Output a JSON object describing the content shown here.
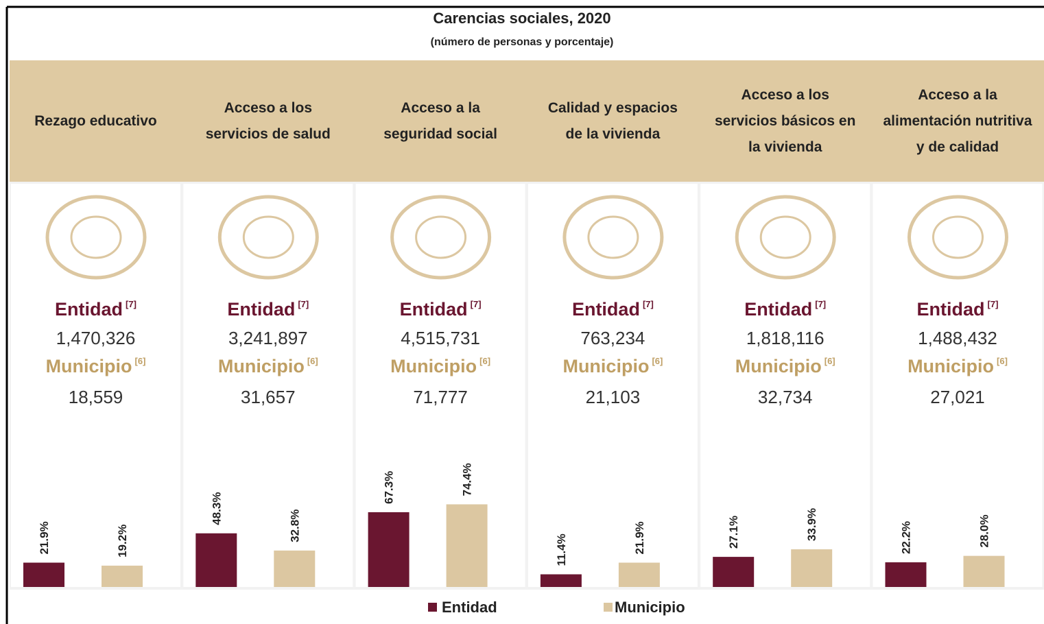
{
  "chart_data": {
    "type": "bar",
    "title": "Carencias sociales, 2020",
    "subtitle": "(número de personas y porcentaje)",
    "categories": [
      "Rezago educativo",
      "Acceso a los servicios de salud",
      "Acceso a la seguridad social",
      "Calidad y espacios de la vivienda",
      "Acceso a los servicios básicos en la vivienda",
      "Acceso a la alimentación nutritiva y de calidad"
    ],
    "entidad_label": "Entidad",
    "entidad_note": "[7]",
    "municipio_label": "Municipio",
    "municipio_note": "[6]",
    "entidad_counts": [
      "1,470,326",
      "3,241,897",
      "4,515,731",
      "763,234",
      "1,818,116",
      "1,488,432"
    ],
    "municipio_counts": [
      "18,559",
      "31,657",
      "71,777",
      "21,103",
      "32,734",
      "27,021"
    ],
    "series": [
      {
        "name": "Entidad",
        "color": "#6a1630",
        "values": [
          21.9,
          48.3,
          67.3,
          11.4,
          27.1,
          22.2
        ],
        "value_labels": [
          "21.9%",
          "48.3%",
          "67.3%",
          "11.4%",
          "27.1%",
          "22.2%"
        ]
      },
      {
        "name": "Municipio",
        "color": "#dcc7a1",
        "values": [
          19.2,
          32.8,
          74.4,
          21.9,
          33.9,
          28.0
        ],
        "value_labels": [
          "19.2%",
          "32.8%",
          "74.4%",
          "21.9%",
          "33.9%",
          "28.0%"
        ]
      }
    ]
  }
}
